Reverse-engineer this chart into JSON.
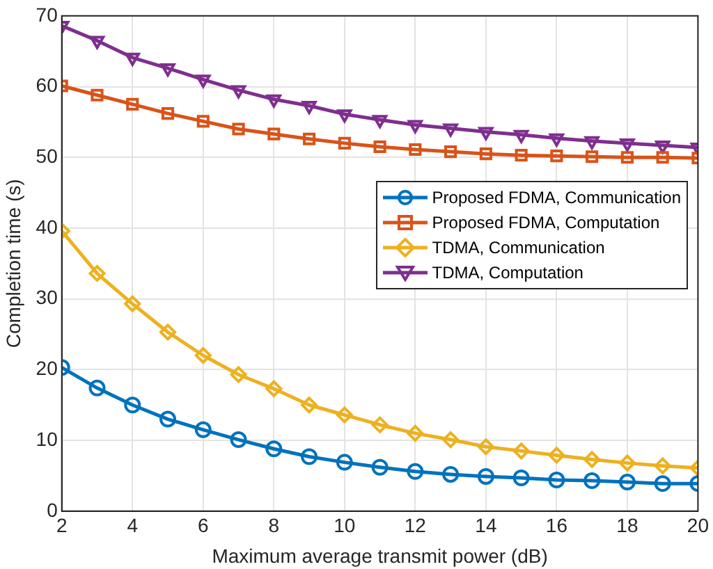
{
  "chart_data": {
    "type": "line",
    "xlabel": "Maximum average transmit power (dB)",
    "ylabel": "Completion time (s)",
    "x": [
      2,
      3,
      4,
      5,
      6,
      7,
      8,
      9,
      10,
      11,
      12,
      13,
      14,
      15,
      16,
      17,
      18,
      19,
      20
    ],
    "xlim": [
      2,
      20
    ],
    "xticks": [
      2,
      4,
      6,
      8,
      10,
      12,
      14,
      16,
      18,
      20
    ],
    "ylim": [
      0,
      70
    ],
    "yticks": [
      0,
      10,
      20,
      30,
      40,
      50,
      60,
      70
    ],
    "grid": true,
    "legend": "right",
    "series": [
      {
        "name": "Proposed FDMA, Communication",
        "color": "#0072bd",
        "marker": "circle",
        "values": [
          20.3,
          17.4,
          15.0,
          13.0,
          11.5,
          10.1,
          8.8,
          7.7,
          6.9,
          6.2,
          5.6,
          5.2,
          4.9,
          4.7,
          4.4,
          4.3,
          4.1,
          3.9,
          3.9
        ]
      },
      {
        "name": "Proposed FDMA, Computation",
        "color": "#d95319",
        "marker": "square",
        "values": [
          60.1,
          58.8,
          57.5,
          56.2,
          55.1,
          54.0,
          53.3,
          52.6,
          52.0,
          51.5,
          51.1,
          50.8,
          50.5,
          50.3,
          50.2,
          50.1,
          50.0,
          50.0,
          49.9
        ]
      },
      {
        "name": "TDMA, Communication",
        "color": "#edb120",
        "marker": "diamond",
        "values": [
          39.6,
          33.6,
          29.3,
          25.3,
          22.0,
          19.3,
          17.3,
          15.0,
          13.6,
          12.2,
          11.0,
          10.1,
          9.1,
          8.5,
          7.9,
          7.3,
          6.8,
          6.4,
          6.1
        ]
      },
      {
        "name": "TDMA, Computation",
        "color": "#7e2f8e",
        "marker": "triangle",
        "values": [
          68.6,
          66.5,
          64.1,
          62.6,
          61.0,
          59.5,
          58.2,
          57.3,
          56.1,
          55.3,
          54.6,
          54.1,
          53.6,
          53.2,
          52.7,
          52.3,
          52.0,
          51.7,
          51.4
        ]
      }
    ]
  }
}
